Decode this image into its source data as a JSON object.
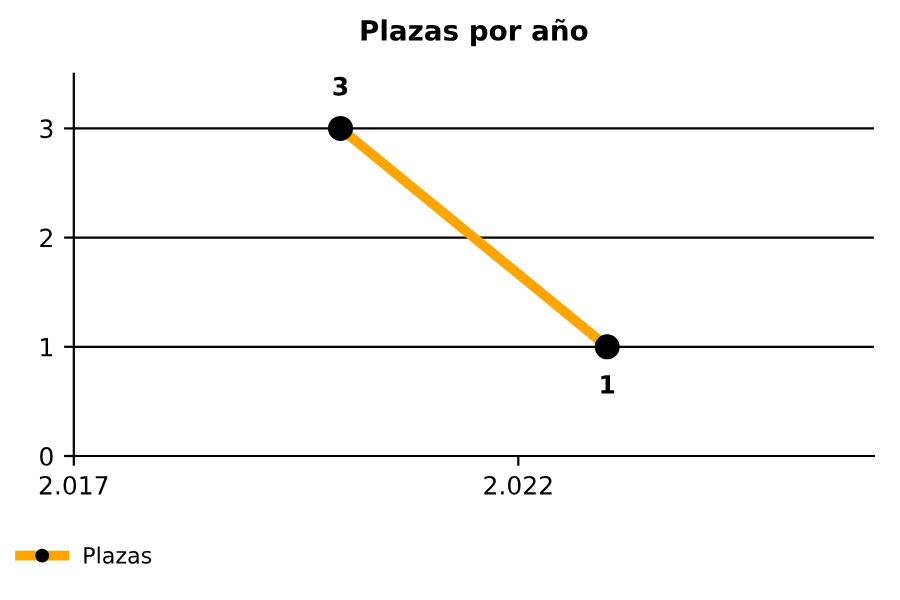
{
  "chart_data": {
    "type": "line",
    "title": "Plazas por año",
    "x": [
      2020,
      2023
    ],
    "series": [
      {
        "name": "Plazas",
        "color": "#ffa500",
        "values": [
          3,
          1
        ]
      }
    ],
    "xlim": [
      2017,
      2026
    ],
    "xticks": [
      {
        "value": 2017,
        "label": "2.017"
      },
      {
        "value": 2022,
        "label": "2.022"
      }
    ],
    "ylim": [
      0,
      3.5
    ],
    "yticks": [
      0,
      1,
      2,
      3
    ],
    "grid": "y",
    "legend": "bottom left",
    "marker": "circle",
    "line_style": "solid",
    "data_labels": true
  }
}
